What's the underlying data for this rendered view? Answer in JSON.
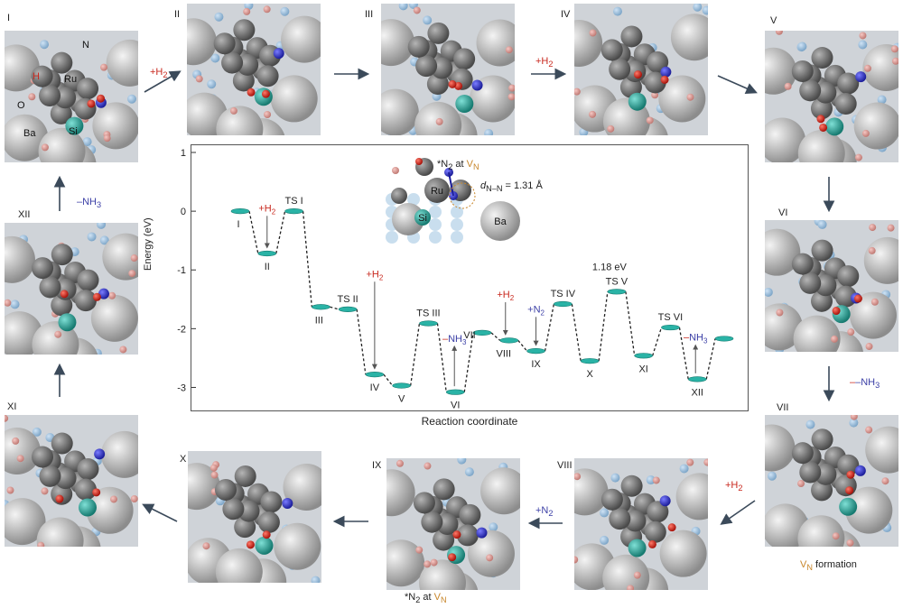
{
  "panels": [
    {
      "id": "I",
      "label": "I",
      "atoms": {
        "ru": "Ru",
        "ba": "Ba",
        "si": "Si",
        "h": "H",
        "o": "O",
        "n": "N"
      }
    },
    {
      "id": "II",
      "label": "II"
    },
    {
      "id": "III",
      "label": "III"
    },
    {
      "id": "IV",
      "label": "IV"
    },
    {
      "id": "V",
      "label": "V"
    },
    {
      "id": "VI",
      "label": "VI"
    },
    {
      "id": "VII",
      "label": "VII"
    },
    {
      "id": "VIII",
      "label": "VIII"
    },
    {
      "id": "IX",
      "label": "IX"
    },
    {
      "id": "X",
      "label": "X"
    },
    {
      "id": "XI",
      "label": "XI"
    },
    {
      "id": "XII",
      "label": "XII"
    }
  ],
  "steps": {
    "i_ii": "+H",
    "iii_iv": "+H",
    "vi_vii": "–NH",
    "vii_viii": "+H",
    "viii_ix": "+N",
    "xii_i": "–NH",
    "sub2": "2",
    "sub3": "3"
  },
  "captions": {
    "vn_formation": "formation",
    "vn_main": "V",
    "vn_sub": "N",
    "n2_at": "N",
    "n2_at_word": " at ",
    "star": "*",
    "n2_sub": "2"
  },
  "inset": {
    "n2_label": "N",
    "at_word": "at",
    "v_label": "V",
    "d_label": "d",
    "d_sub": "N–N",
    "d_value": " = 1.31 Å",
    "ru": "Ru",
    "si": "Si",
    "ba": "Ba"
  },
  "chart_data": {
    "type": "line",
    "xlabel": "Reaction coordinate",
    "ylabel": "Energy (eV)",
    "ylim": [
      -3.3,
      1.0
    ],
    "yticks": [
      1,
      0,
      -1,
      -2,
      -3
    ],
    "states": [
      {
        "name": "I",
        "energy": 0.0,
        "kind": "int"
      },
      {
        "name": "II",
        "energy": -0.72,
        "kind": "int"
      },
      {
        "name": "TS I",
        "energy": 0.0,
        "kind": "ts"
      },
      {
        "name": "III",
        "energy": -1.63,
        "kind": "int"
      },
      {
        "name": "TS II",
        "energy": -1.67,
        "kind": "ts"
      },
      {
        "name": "IV",
        "energy": -2.78,
        "kind": "int"
      },
      {
        "name": "V",
        "energy": -2.97,
        "kind": "int"
      },
      {
        "name": "TS III",
        "energy": -1.91,
        "kind": "ts"
      },
      {
        "name": "VI",
        "energy": -3.08,
        "kind": "int"
      },
      {
        "name": "VII",
        "energy": -2.07,
        "kind": "int"
      },
      {
        "name": "VIII",
        "energy": -2.2,
        "kind": "int"
      },
      {
        "name": "IX",
        "energy": -2.38,
        "kind": "int"
      },
      {
        "name": "TS IV",
        "energy": -1.58,
        "kind": "ts"
      },
      {
        "name": "X",
        "energy": -2.55,
        "kind": "int"
      },
      {
        "name": "TS V",
        "energy": -1.37,
        "kind": "ts"
      },
      {
        "name": "XI",
        "energy": -2.46,
        "kind": "int"
      },
      {
        "name": "TS VI",
        "energy": -1.98,
        "kind": "ts"
      },
      {
        "name": "XII",
        "energy": -2.86,
        "kind": "int"
      },
      {
        "name": "",
        "energy": -2.17,
        "kind": "end"
      }
    ],
    "annotations": [
      {
        "text": "1.18 eV"
      },
      {
        "text": "+H",
        "sub": "2"
      },
      {
        "text": "+H",
        "sub": "2"
      },
      {
        "text": "–NH",
        "sub": "3"
      },
      {
        "text": "+H",
        "sub": "2"
      },
      {
        "text": "+N",
        "sub": "2"
      },
      {
        "text": "–NH",
        "sub": "3"
      }
    ],
    "colors": {
      "level": "#2ab3a6",
      "line": "#222222",
      "h2": "#c8281e",
      "n2": "#3b3fa6",
      "nh3": "#3b3fa6"
    }
  }
}
